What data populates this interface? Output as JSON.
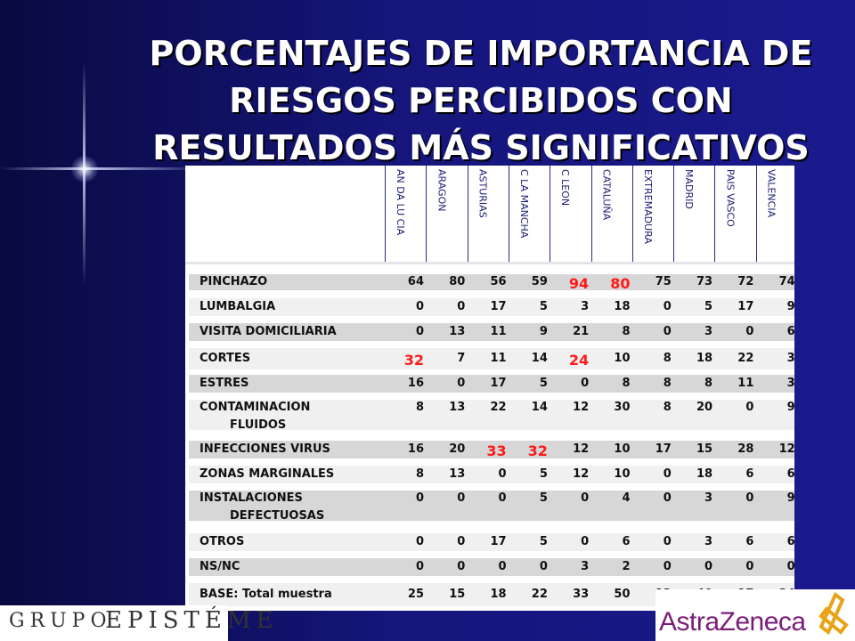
{
  "title_lines": [
    "PORCENTAJES DE IMPORTANCIA DE",
    "RIESGOS PERCIBIDOS CON",
    "RESULTADOS MÁS SIGNIFICATIVOS"
  ],
  "columns": [
    "AN DA LU CIA",
    "ARAGON",
    "ASTURIAS",
    "C LA MANCHA",
    "C LEON",
    "CATALUÑA",
    "EXTREMADURA",
    "MADRID",
    "PAIS VASCO",
    "VALENCIA"
  ],
  "rows": [
    {
      "label": [
        "PINCHAZO"
      ],
      "values": [
        "64",
        "80",
        "56",
        "59",
        "94",
        "80",
        "75",
        "73",
        "72",
        "74"
      ]
    },
    {
      "label": [
        "LUMBALGIA"
      ],
      "values": [
        "0",
        "0",
        "17",
        "5",
        "3",
        "18",
        "0",
        "5",
        "17",
        "9"
      ]
    },
    {
      "label": [
        "VISITA DOMICILIARIA"
      ],
      "values": [
        "0",
        "13",
        "11",
        "9",
        "21",
        "8",
        "0",
        "3",
        "0",
        "6"
      ]
    },
    {
      "label": [
        "CORTES"
      ],
      "values": [
        "32",
        "7",
        "11",
        "14",
        "24",
        "10",
        "8",
        "18",
        "22",
        "3"
      ]
    },
    {
      "label": [
        "ESTRES"
      ],
      "values": [
        "16",
        "0",
        "17",
        "5",
        "0",
        "8",
        "8",
        "8",
        "11",
        "3"
      ]
    },
    {
      "label": [
        "CONTAMINACION",
        "FLUIDOS"
      ],
      "values": [
        "8",
        "13",
        "22",
        "14",
        "12",
        "30",
        "8",
        "20",
        "0",
        "9"
      ]
    },
    {
      "label": [
        "INFECCIONES VIRUS"
      ],
      "values": [
        "16",
        "20",
        "33",
        "32",
        "12",
        "10",
        "17",
        "15",
        "28",
        "12"
      ]
    },
    {
      "label": [
        "ZONAS MARGINALES"
      ],
      "values": [
        "8",
        "13",
        "0",
        "5",
        "12",
        "10",
        "0",
        "18",
        "6",
        "6"
      ]
    },
    {
      "label": [
        "INSTALACIONES",
        "DEFECTUOSAS"
      ],
      "values": [
        "0",
        "0",
        "0",
        "5",
        "0",
        "4",
        "0",
        "3",
        "0",
        "9"
      ]
    },
    {
      "label": [
        "OTROS"
      ],
      "values": [
        "0",
        "0",
        "17",
        "5",
        "0",
        "6",
        "0",
        "3",
        "6",
        "6"
      ]
    },
    {
      "label": [
        "NS/NC"
      ],
      "values": [
        "0",
        "0",
        "0",
        "0",
        "3",
        "2",
        "0",
        "0",
        "0",
        "0"
      ]
    },
    {
      "label": [
        "BASE: Total muestra"
      ],
      "values": [
        "25",
        "15",
        "18",
        "22",
        "33",
        "50",
        "12",
        "40",
        "17",
        "34"
      ]
    }
  ],
  "highlights": [
    [
      0,
      4
    ],
    [
      0,
      5
    ],
    [
      3,
      0
    ],
    [
      3,
      4
    ],
    [
      6,
      2
    ],
    [
      6,
      3
    ]
  ],
  "logos": {
    "left_grupo": "GRUPO",
    "left_name": "EPISTÉME",
    "right_name": "AstraZeneca"
  },
  "colors": {
    "highlight": "#ff1a1a",
    "astrazeneca_purple": "#7a1d78",
    "astrazeneca_gold": "#e8a317"
  }
}
